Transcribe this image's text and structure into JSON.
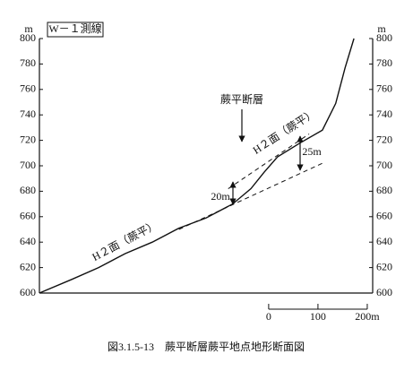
{
  "chart_data": {
    "type": "line",
    "label": "W－１測線",
    "y_unit": "m",
    "caption": "図3.1.5-13　蕨平断層蕨平地点地形断面図",
    "xlim": [
      -465,
      211
    ],
    "xticks": [
      {
        "value": 0,
        "label": "0"
      },
      {
        "value": 100,
        "label": "100"
      },
      {
        "value": 200,
        "label": "200m"
      }
    ],
    "ylim": [
      600,
      800
    ],
    "yticks": [
      600,
      620,
      640,
      660,
      680,
      700,
      720,
      740,
      760,
      780,
      800
    ],
    "series": [
      {
        "color": "#111111",
        "dashed": false,
        "x": [
          -465,
          -400,
          -345,
          -291,
          -236,
          -182,
          -127,
          -73,
          -36,
          -9,
          18,
          64,
          109,
          136,
          155,
          173
        ],
        "values": [
          600,
          610.6,
          620,
          631,
          640,
          651,
          659,
          670,
          682,
          695,
          707,
          718,
          728,
          749,
          777,
          800
        ]
      },
      {
        "color": "#111111",
        "dashed": true,
        "x": [
          -82,
          82
        ],
        "values": [
          682,
          725
        ]
      },
      {
        "color": "#111111",
        "dashed": true,
        "x": [
          -182,
          109
        ],
        "values": [
          650,
          702
        ]
      }
    ],
    "annotations": [
      "蕨平断層",
      "H２面（蕨平）",
      "H２面（蕨平）",
      "20m",
      "25m"
    ]
  }
}
